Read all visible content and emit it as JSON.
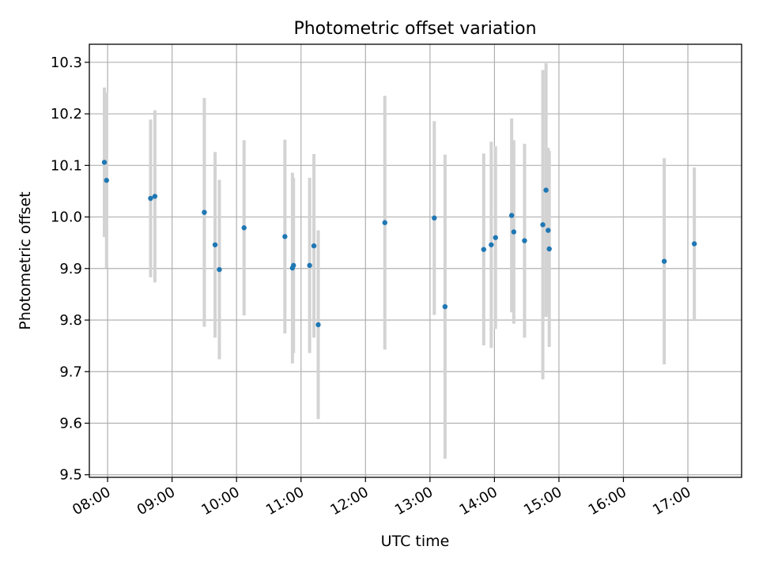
{
  "chart_data": {
    "type": "scatter",
    "title": "Photometric offset variation",
    "xlabel": "UTC time",
    "ylabel": "Photometric offset",
    "x_axis_type": "time",
    "xlim": [
      "07:43",
      "17:50"
    ],
    "ylim": [
      9.495,
      10.335
    ],
    "x_ticks": [
      "08:00",
      "09:00",
      "10:00",
      "11:00",
      "12:00",
      "13:00",
      "14:00",
      "15:00",
      "16:00",
      "17:00"
    ],
    "y_ticks": [
      "9.5",
      "9.6",
      "9.7",
      "9.8",
      "9.9",
      "10.0",
      "10.1",
      "10.2",
      "10.3"
    ],
    "grid": true,
    "legend": false,
    "colors": {
      "points": "#1f77b4",
      "errorbars": "#d3d3d3",
      "grid": "#b0b0b0"
    },
    "series": [
      {
        "points": [
          {
            "x": "07:57",
            "y": 10.106,
            "err": 0.145
          },
          {
            "x": "07:59",
            "y": 10.071,
            "err": 0.17
          },
          {
            "x": "08:40",
            "y": 10.036,
            "err": 0.153
          },
          {
            "x": "08:44",
            "y": 10.04,
            "err": 0.167
          },
          {
            "x": "09:30",
            "y": 10.009,
            "err": 0.222
          },
          {
            "x": "09:40",
            "y": 9.946,
            "err": 0.18
          },
          {
            "x": "09:44",
            "y": 9.898,
            "err": 0.174
          },
          {
            "x": "10:07",
            "y": 9.979,
            "err": 0.17
          },
          {
            "x": "10:45",
            "y": 9.962,
            "err": 0.188
          },
          {
            "x": "10:52",
            "y": 9.901,
            "err": 0.185
          },
          {
            "x": "10:53",
            "y": 9.906,
            "err": 0.17
          },
          {
            "x": "11:08",
            "y": 9.906,
            "err": 0.17
          },
          {
            "x": "11:12",
            "y": 9.944,
            "err": 0.178
          },
          {
            "x": "11:16",
            "y": 9.791,
            "err": 0.183
          },
          {
            "x": "12:18",
            "y": 9.989,
            "err": 0.246
          },
          {
            "x": "13:04",
            "y": 9.998,
            "err": 0.188
          },
          {
            "x": "13:14",
            "y": 9.826,
            "err": 0.295
          },
          {
            "x": "13:50",
            "y": 9.937,
            "err": 0.186
          },
          {
            "x": "13:57",
            "y": 9.946,
            "err": 0.2
          },
          {
            "x": "14:01",
            "y": 9.96,
            "err": 0.177
          },
          {
            "x": "14:16",
            "y": 10.003,
            "err": 0.188
          },
          {
            "x": "14:18",
            "y": 9.971,
            "err": 0.178
          },
          {
            "x": "14:28",
            "y": 9.954,
            "err": 0.188
          },
          {
            "x": "14:45",
            "y": 9.985,
            "err": 0.3
          },
          {
            "x": "14:48",
            "y": 10.052,
            "err": 0.246
          },
          {
            "x": "14:50",
            "y": 9.974,
            "err": 0.16
          },
          {
            "x": "14:51",
            "y": 9.938,
            "err": 0.19
          },
          {
            "x": "16:38",
            "y": 9.914,
            "err": 0.2
          },
          {
            "x": "17:06",
            "y": 9.948,
            "err": 0.148
          }
        ]
      }
    ]
  }
}
